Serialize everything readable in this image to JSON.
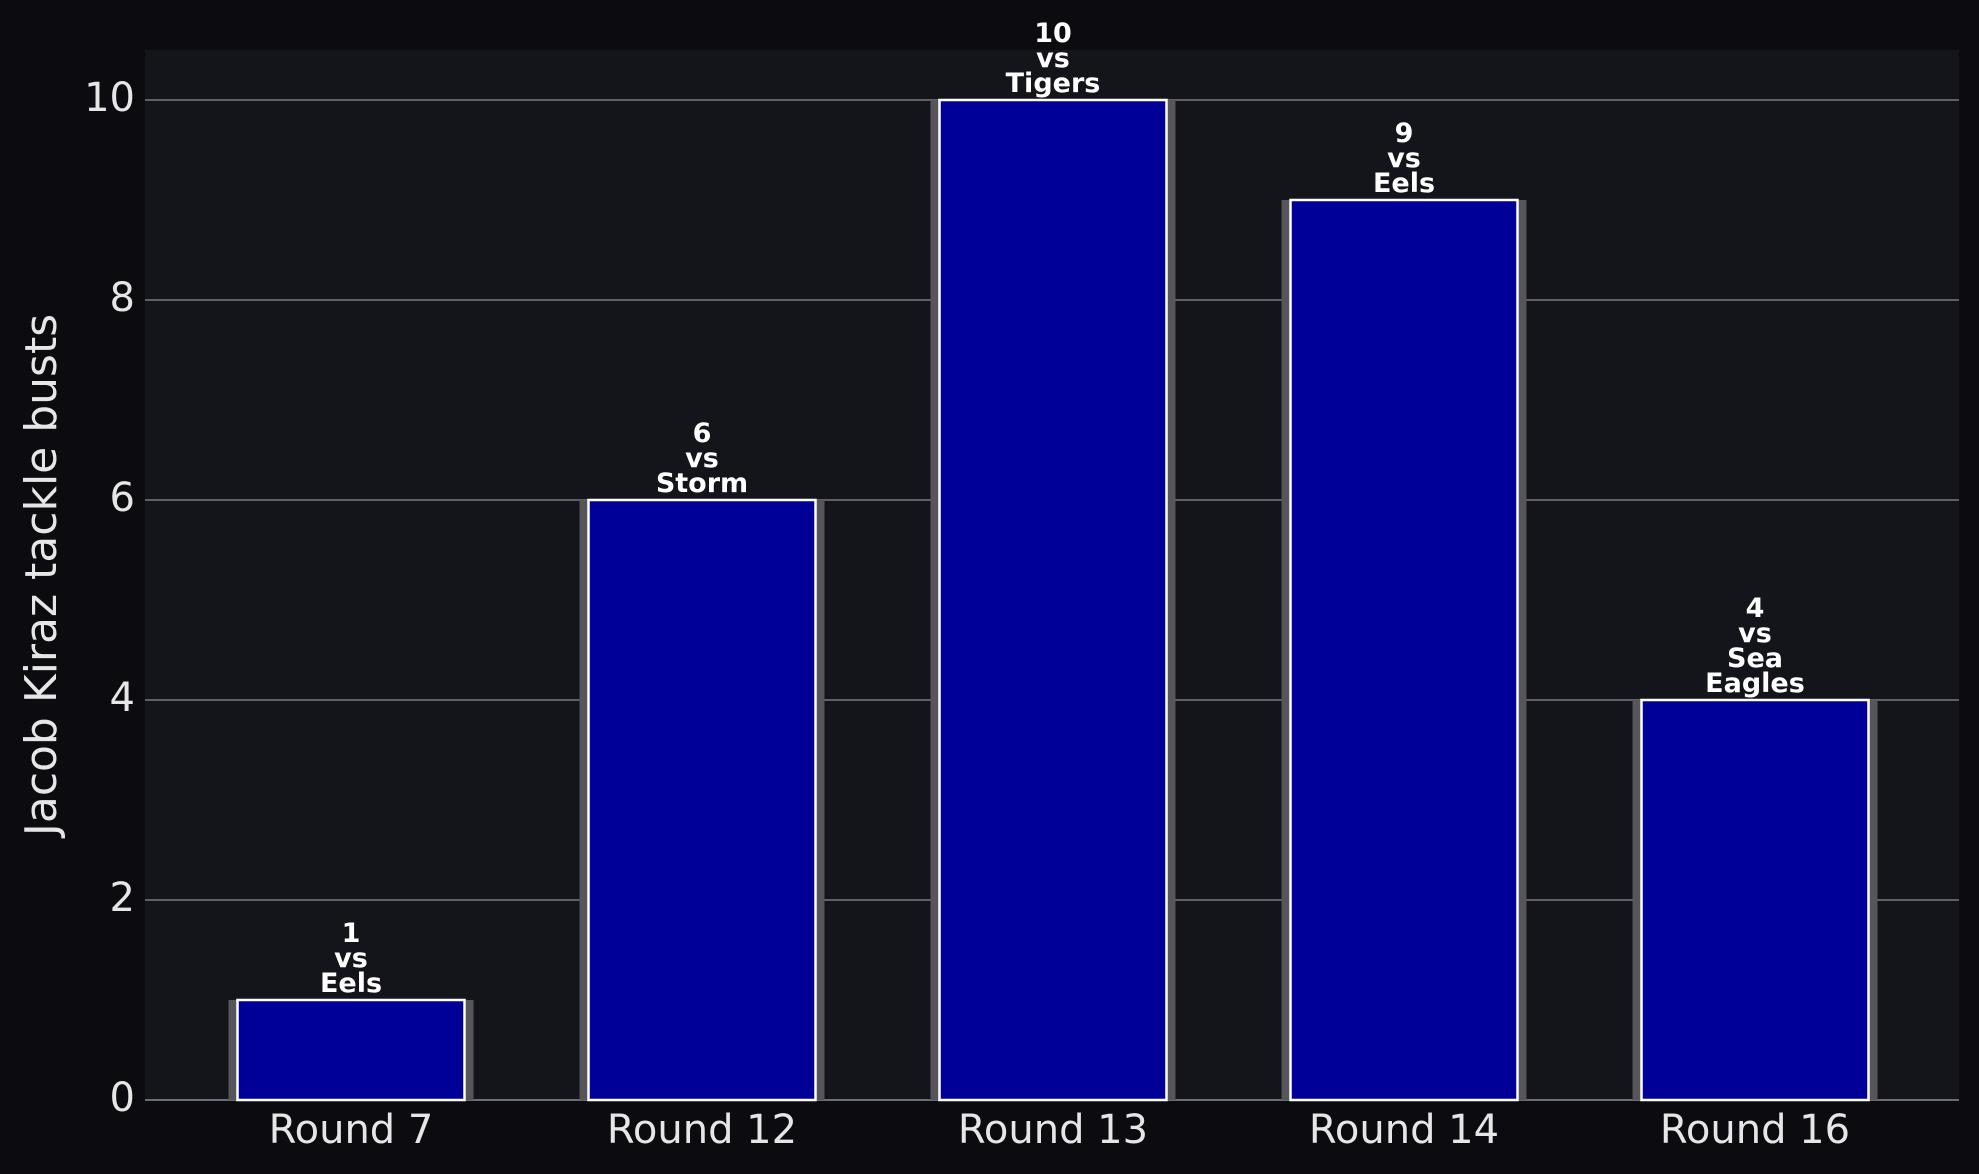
{
  "chart_data": {
    "type": "bar",
    "y_label": "Jacob Kiraz tackle busts",
    "categories": [
      "Round 7",
      "Round 12",
      "Round 13",
      "Round 14",
      "Round 16"
    ],
    "values": [
      1,
      6,
      10,
      9,
      4
    ],
    "value_labels": [
      "1\nvs\nEels",
      "6\nvs\nStorm",
      "10\nvs\nTigers",
      "9\nvs\nEels",
      "4\nvs\nSea\nEagles"
    ],
    "color": "#000099",
    "ylim": [
      0,
      10.5
    ],
    "yticks": [
      0,
      2,
      4,
      6,
      8,
      10
    ],
    "grid": true
  }
}
